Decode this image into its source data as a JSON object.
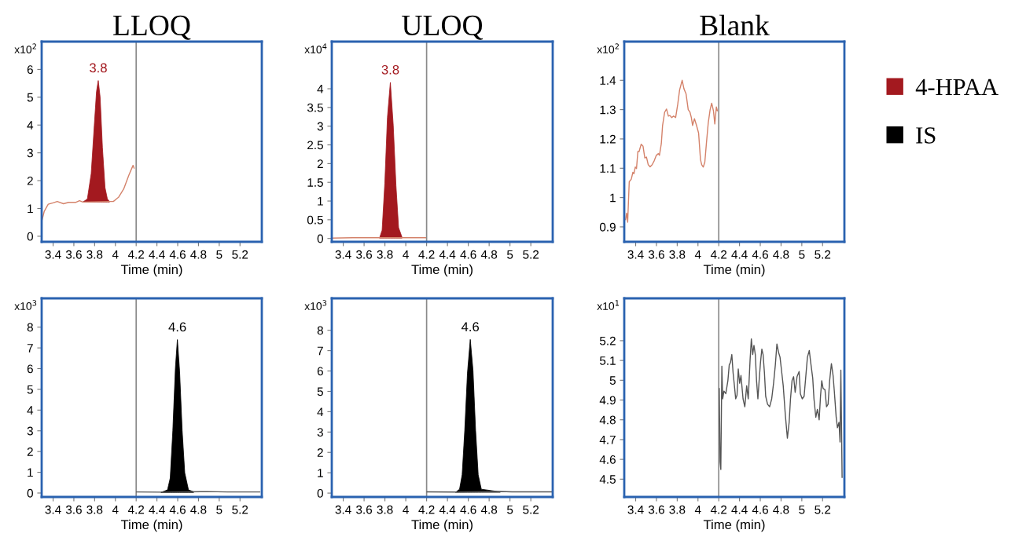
{
  "chart_data": [
    {
      "type": "area",
      "title": "LLOQ",
      "xlabel": "Time (min)",
      "annotations": [
        "x10$^{2}$",
        {
          "text": "3.8",
          "x": 3.835,
          "y": 5.6
        }
      ],
      "xlim": [
        3.29,
        5.41
      ],
      "xticks": [
        3.4,
        3.6,
        3.8,
        4,
        4.2,
        4.4,
        4.6,
        4.8,
        5,
        5.2
      ],
      "ylim": [
        -0.2,
        7.0
      ],
      "yticks": [
        0,
        1,
        2,
        3,
        4,
        5,
        6
      ],
      "legend": "right",
      "ref_lines": [
        {
          "axis": "x",
          "value": 4.2,
          "color": "#8a8a8a"
        }
      ],
      "series": [
        {
          "type": "line",
          "color": "#d4826a",
          "x": [
            3.295,
            3.315,
            3.353,
            3.4,
            3.44,
            3.5,
            3.55,
            3.62,
            3.655,
            3.687,
            3.943,
            3.98,
            4.03,
            4.08,
            4.13,
            4.17,
            4.18
          ],
          "values": [
            0.6,
            0.9,
            1.15,
            1.2,
            1.25,
            1.17,
            1.22,
            1.22,
            1.28,
            1.23,
            1.25,
            1.25,
            1.4,
            1.7,
            2.2,
            2.55,
            2.45
          ]
        },
        {
          "name": "4-HPAA",
          "color": "#a3191f",
          "x": [
            3.687,
            3.73,
            3.767,
            3.797,
            3.818,
            3.835,
            3.853,
            3.875,
            3.9,
            3.923,
            3.943
          ],
          "values": [
            1.23,
            1.34,
            2.25,
            4.0,
            5.2,
            5.6,
            5.0,
            3.2,
            1.75,
            1.34,
            1.25
          ]
        }
      ]
    },
    {
      "type": "area",
      "title": "ULOQ",
      "xlabel": "Time (min)",
      "annotations": [
        "x10$^{4}$",
        {
          "text": "3.8",
          "x": 3.852,
          "y": 4.17
        }
      ],
      "xlim": [
        3.29,
        5.41
      ],
      "xticks": [
        3.4,
        3.6,
        3.8,
        4,
        4.2,
        4.4,
        4.6,
        4.8,
        5,
        5.2
      ],
      "ylim": [
        -0.09,
        5.26
      ],
      "yticks": [
        0,
        0.5,
        1,
        1.5,
        2,
        2.5,
        3,
        3.5,
        4
      ],
      "ref_lines": [
        {
          "axis": "x",
          "value": 4.2,
          "color": "#8a8a8a"
        }
      ],
      "series": [
        {
          "type": "line",
          "color": "#d4826a",
          "x": [
            3.3,
            3.49,
            3.72,
            3.98,
            4.19
          ],
          "values": [
            0.01,
            0.02,
            0.02,
            0.02,
            0.02
          ]
        },
        {
          "color": "#a3191f",
          "x": [
            3.748,
            3.773,
            3.799,
            3.824,
            3.852,
            3.88,
            3.906,
            3.931,
            3.964
          ],
          "values": [
            0.01,
            0.22,
            1.48,
            3.23,
            4.17,
            3.02,
            1.41,
            0.29,
            0.03
          ]
        }
      ]
    },
    {
      "type": "line",
      "title": "Blank",
      "xlabel": "Time (min)",
      "annotations": [
        "x10$^{2}$"
      ],
      "xlim": [
        3.29,
        5.41
      ],
      "xticks": [
        3.4,
        3.6,
        3.8,
        4,
        4.2,
        4.4,
        4.6,
        4.8,
        5,
        5.2
      ],
      "ylim": [
        0.849,
        1.532
      ],
      "yticks": [
        0.9,
        1,
        1.1,
        1.2,
        1.3,
        1.4
      ],
      "ref_lines": [
        {
          "axis": "x",
          "value": 4.2,
          "color": "#8a8a8a"
        }
      ],
      "series": [
        {
          "color": "#d4826a",
          "x": [
            3.303,
            3.313,
            3.323,
            3.338,
            3.358,
            3.373,
            3.383,
            3.396,
            3.408,
            3.421,
            3.433,
            3.453,
            3.471,
            3.488,
            3.504,
            3.521,
            3.539,
            3.559,
            3.579,
            3.599,
            3.619,
            3.629,
            3.647,
            3.659,
            3.679,
            3.697,
            3.715,
            3.73,
            3.747,
            3.765,
            3.785,
            3.805,
            3.823,
            3.848,
            3.865,
            3.885,
            3.906,
            3.923,
            3.936,
            3.948,
            3.966,
            3.986,
            4.006,
            4.024,
            4.036,
            4.051,
            4.066,
            4.081,
            4.099,
            4.117,
            4.132,
            4.149,
            4.162,
            4.177,
            4.187
          ],
          "values": [
            0.925,
            0.947,
            0.916,
            1.054,
            1.063,
            1.086,
            1.081,
            1.104,
            1.099,
            1.157,
            1.157,
            1.182,
            1.175,
            1.135,
            1.138,
            1.112,
            1.105,
            1.112,
            1.126,
            1.144,
            1.15,
            1.144,
            1.184,
            1.246,
            1.291,
            1.302,
            1.278,
            1.28,
            1.273,
            1.278,
            1.273,
            1.318,
            1.367,
            1.4,
            1.371,
            1.354,
            1.3,
            1.291,
            1.273,
            1.246,
            1.269,
            1.246,
            1.22,
            1.13,
            1.112,
            1.104,
            1.121,
            1.184,
            1.255,
            1.3,
            1.322,
            1.296,
            1.251,
            1.309,
            1.296
          ]
        }
      ]
    },
    {
      "type": "area",
      "xlabel": "Time (min)",
      "annotations": [
        "x10$^{3}$",
        {
          "text": "4.6",
          "x": 4.597,
          "y": 7.4
        }
      ],
      "xlim": [
        3.29,
        5.41
      ],
      "xticks": [
        3.4,
        3.6,
        3.8,
        4,
        4.2,
        4.4,
        4.6,
        4.8,
        5,
        5.2
      ],
      "ylim": [
        -0.19,
        9.39
      ],
      "yticks": [
        0,
        1,
        2,
        3,
        4,
        5,
        6,
        7,
        8
      ],
      "legend": "right",
      "ref_lines": [
        {
          "axis": "x",
          "value": 4.2,
          "color": "#8a8a8a"
        }
      ],
      "series": [
        {
          "type": "line",
          "color": "#555555",
          "x": [
            4.205,
            4.439,
            4.879,
            5.08,
            5.39
          ],
          "values": [
            0.05,
            0.04,
            0.07,
            0.05,
            0.05
          ]
        },
        {
          "name": "IS",
          "color": "#000000",
          "x": [
            4.439,
            4.502,
            4.528,
            4.553,
            4.578,
            4.597,
            4.618,
            4.643,
            4.668,
            4.704,
            4.754
          ],
          "values": [
            0.03,
            0.15,
            0.72,
            3.0,
            6.04,
            7.4,
            5.9,
            3.0,
            0.97,
            0.15,
            0.06
          ]
        }
      ]
    },
    {
      "type": "area",
      "xlabel": "Time (min)",
      "annotations": [
        "x10$^{3}$",
        {
          "text": "4.6",
          "x": 4.619,
          "y": 7.55
        }
      ],
      "xlim": [
        3.29,
        5.41
      ],
      "xticks": [
        3.4,
        3.6,
        3.8,
        4,
        4.2,
        4.4,
        4.6,
        4.8,
        5,
        5.2
      ],
      "ylim": [
        -0.19,
        9.57
      ],
      "yticks": [
        0,
        1,
        2,
        3,
        4,
        5,
        6,
        7,
        8
      ],
      "ref_lines": [
        {
          "axis": "x",
          "value": 4.2,
          "color": "#8a8a8a"
        }
      ],
      "series": [
        {
          "type": "line",
          "color": "#555555",
          "x": [
            4.205,
            4.478,
            4.907,
            5.02,
            5.4
          ],
          "values": [
            0.06,
            0.05,
            0.08,
            0.06,
            0.06
          ]
        },
        {
          "color": "#000000",
          "x": [
            4.478,
            4.516,
            4.541,
            4.566,
            4.592,
            4.619,
            4.645,
            4.67,
            4.695,
            4.725,
            4.907
          ],
          "values": [
            0.04,
            0.19,
            0.9,
            3.08,
            5.9,
            7.55,
            6.03,
            3.08,
            0.9,
            0.19,
            0.06
          ]
        }
      ]
    },
    {
      "type": "line",
      "xlabel": "Time (min)",
      "annotations": [
        "x10$^{1}$"
      ],
      "xlim": [
        3.29,
        5.41
      ],
      "xticks": [
        3.4,
        3.6,
        3.8,
        4,
        4.2,
        4.4,
        4.6,
        4.8,
        5,
        5.2
      ],
      "ylim": [
        4.41,
        5.414
      ],
      "yticks": [
        4.5,
        4.6,
        4.7,
        4.8,
        4.9,
        5,
        5.1,
        5.2
      ],
      "ref_lines": [
        {
          "axis": "x",
          "value": 4.2,
          "color": "#8a8a8a"
        }
      ],
      "series": [
        {
          "color": "#555555",
          "x": [
            4.205,
            4.213,
            4.22,
            4.23,
            4.238,
            4.25,
            4.268,
            4.288,
            4.301,
            4.313,
            4.326,
            4.338,
            4.351,
            4.363,
            4.376,
            4.388,
            4.401,
            4.414,
            4.434,
            4.451,
            4.469,
            4.484,
            4.502,
            4.514,
            4.527,
            4.539,
            4.552,
            4.564,
            4.577,
            4.589,
            4.602,
            4.615,
            4.627,
            4.64,
            4.652,
            4.67,
            4.69,
            4.71,
            4.728,
            4.745,
            4.76,
            4.778,
            4.79,
            4.803,
            4.821,
            4.841,
            4.861,
            4.878,
            4.891,
            4.906,
            4.921,
            4.936,
            4.954,
            4.974,
            4.986,
            5.004,
            5.022,
            5.037,
            5.054,
            5.072,
            5.087,
            5.105,
            5.117,
            5.135,
            5.15,
            5.167,
            5.18,
            5.192,
            5.205,
            5.223,
            5.238,
            5.253,
            5.268,
            5.285,
            5.301,
            5.313,
            5.331,
            5.343,
            5.358,
            5.368,
            5.376,
            5.388
          ],
          "values": [
            4.958,
            4.588,
            4.549,
            5.071,
            4.906,
            4.945,
            4.932,
            4.998,
            5.077,
            5.09,
            5.13,
            5.038,
            4.972,
            4.906,
            4.925,
            5.057,
            4.985,
            5.024,
            4.906,
            4.866,
            4.972,
            4.906,
            5.104,
            5.209,
            5.13,
            5.176,
            5.13,
            4.998,
            4.906,
            4.998,
            5.09,
            5.157,
            5.13,
            5.038,
            4.919,
            4.879,
            4.866,
            4.906,
            4.985,
            5.077,
            5.183,
            5.137,
            5.117,
            5.057,
            4.972,
            4.826,
            4.707,
            4.787,
            4.906,
            4.998,
            5.018,
            4.939,
            5.018,
            5.044,
            4.932,
            4.906,
            4.919,
            5.011,
            5.117,
            5.15,
            5.084,
            5.011,
            4.906,
            4.813,
            4.853,
            4.8,
            4.919,
            4.998,
            4.958,
            4.952,
            4.866,
            4.879,
            4.998,
            5.084,
            5.024,
            4.945,
            4.813,
            4.76,
            4.787,
            4.688,
            5.051,
            4.509
          ]
        }
      ]
    }
  ]
}
